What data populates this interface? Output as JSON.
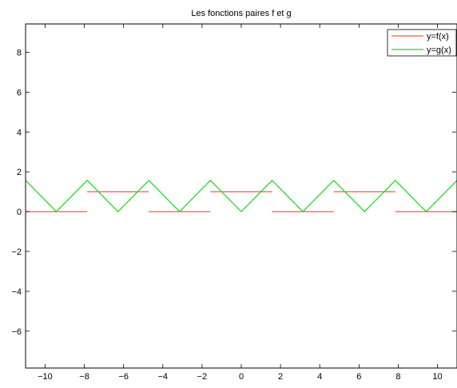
{
  "chart_data": {
    "type": "line",
    "title": "Les fonctions paires f et g",
    "xlabel": "",
    "ylabel": "",
    "xlim": [
      -10.996,
      10.996
    ],
    "ylim": [
      -7.854,
      9.425
    ],
    "xticks": [
      -10,
      -8,
      -6,
      -4,
      -2,
      0,
      2,
      4,
      6,
      8,
      10
    ],
    "yticks": [
      -6,
      -4,
      -2,
      0,
      2,
      4,
      6,
      8
    ],
    "xtick_labels": [
      "−10",
      "−8",
      "−6",
      "−4",
      "−2",
      "0",
      "2",
      "4",
      "6",
      "8",
      "10"
    ],
    "ytick_labels": [
      "−6",
      "−4",
      "−2",
      "0",
      "2",
      "4",
      "6",
      "8"
    ],
    "grid": false,
    "legend_position": "top-right",
    "series": [
      {
        "name": "y=f(x)",
        "color": "#ef5c3f",
        "segments": [
          [
            [
              -10.996,
              0
            ],
            [
              -7.854,
              0
            ]
          ],
          [
            [
              -7.854,
              1
            ],
            [
              -4.712,
              1
            ]
          ],
          [
            [
              -4.712,
              0
            ],
            [
              -1.571,
              0
            ]
          ],
          [
            [
              -1.571,
              1
            ],
            [
              1.571,
              1
            ]
          ],
          [
            [
              1.571,
              0
            ],
            [
              4.712,
              0
            ]
          ],
          [
            [
              4.712,
              1
            ],
            [
              7.854,
              1
            ]
          ],
          [
            [
              7.854,
              0
            ],
            [
              10.996,
              0
            ]
          ]
        ]
      },
      {
        "name": "y=g(x)",
        "color": "#22dd22",
        "points": [
          [
            -10.996,
            1.571
          ],
          [
            -9.425,
            0
          ],
          [
            -7.854,
            1.571
          ],
          [
            -6.283,
            0
          ],
          [
            -4.712,
            1.571
          ],
          [
            -3.142,
            0
          ],
          [
            -1.571,
            1.571
          ],
          [
            0,
            0
          ],
          [
            1.571,
            1.571
          ],
          [
            3.142,
            0
          ],
          [
            4.712,
            1.571
          ],
          [
            6.283,
            0
          ],
          [
            7.854,
            1.571
          ],
          [
            9.425,
            0
          ],
          [
            10.996,
            1.571
          ]
        ]
      }
    ]
  }
}
